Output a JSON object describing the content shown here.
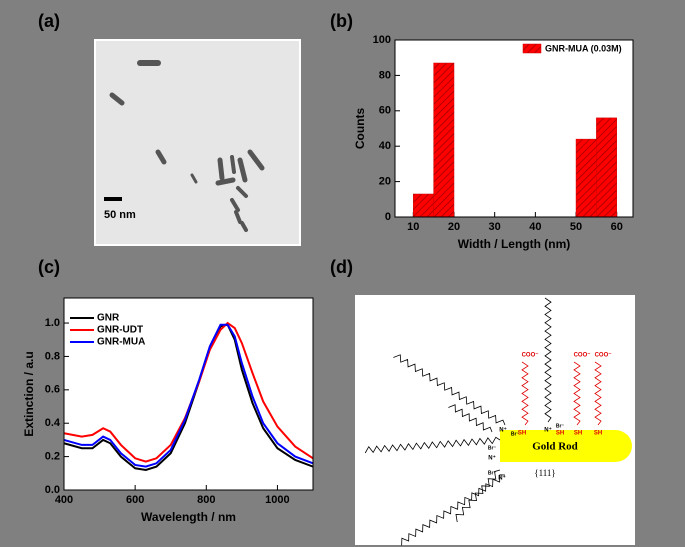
{
  "image_panel": {
    "label": "(a)",
    "scale_bar": "50 nm"
  },
  "chart_data": [
    {
      "type": "histogram",
      "panel_label": "(b)",
      "name": "GNR-MUA (0.03M)",
      "color": "#ff0000",
      "legend": "upper right",
      "bins": [
        10,
        15,
        20,
        25,
        30,
        35,
        40,
        45,
        50,
        55,
        60
      ],
      "counts": [
        13,
        87,
        0,
        0,
        0,
        0,
        0,
        0,
        44,
        56
      ],
      "xlim": [
        5.5,
        64
      ],
      "xticks": [
        10,
        20,
        30,
        40,
        50,
        60
      ],
      "ylim": [
        0,
        100
      ],
      "yticks": [
        0,
        20,
        40,
        60,
        80,
        100
      ],
      "xlabel": "Width / Length (nm)",
      "ylabel": "Counts"
    },
    {
      "type": "line",
      "panel_label": "(c)",
      "legend": "upper left",
      "x": [
        400,
        450,
        480,
        510,
        530,
        560,
        600,
        630,
        660,
        700,
        740,
        780,
        810,
        840,
        860,
        880,
        900,
        930,
        960,
        1000,
        1050,
        1100
      ],
      "series": [
        {
          "name": "GNR",
          "color": "#000000",
          "values": [
            0.28,
            0.25,
            0.25,
            0.3,
            0.28,
            0.2,
            0.13,
            0.12,
            0.14,
            0.22,
            0.4,
            0.65,
            0.85,
            0.98,
            0.99,
            0.9,
            0.72,
            0.52,
            0.37,
            0.25,
            0.18,
            0.14
          ]
        },
        {
          "name": "GNR-UDT",
          "color": "#ff0000",
          "values": [
            0.34,
            0.32,
            0.33,
            0.37,
            0.35,
            0.27,
            0.19,
            0.17,
            0.19,
            0.27,
            0.43,
            0.65,
            0.84,
            0.96,
            1.0,
            0.97,
            0.88,
            0.7,
            0.53,
            0.38,
            0.26,
            0.19
          ]
        },
        {
          "name": "GNR-MUA",
          "color": "#0000ff",
          "values": [
            0.3,
            0.27,
            0.27,
            0.32,
            0.3,
            0.22,
            0.15,
            0.14,
            0.16,
            0.24,
            0.42,
            0.66,
            0.86,
            0.99,
            0.99,
            0.92,
            0.76,
            0.56,
            0.4,
            0.28,
            0.2,
            0.16
          ]
        }
      ],
      "xlim": [
        400,
        1100
      ],
      "xticks": [
        400,
        600,
        800,
        1000
      ],
      "ylim": [
        0,
        1.15
      ],
      "yticks": [
        {
          "value": 0,
          "label": "0.0"
        },
        0.2,
        0.4,
        0.6,
        0.8,
        {
          "value": 1,
          "label": "1.0"
        }
      ],
      "xlabel": "Wavelength / nm",
      "ylabel": "Extinction / a.u"
    }
  ],
  "diagram": {
    "label": "(d)",
    "rod": "Gold Rod",
    "facet": "{111}",
    "carboxylates": [
      "COO⁻",
      "COO⁻",
      "COO⁻"
    ],
    "thiols": [
      "SH",
      "SH",
      "SH",
      "SH"
    ],
    "ammonium": [
      "N⁺",
      "N⁺",
      "N⁺",
      "N⁺"
    ],
    "bromide": [
      "Br⁻",
      "Br⁻",
      "Br⁻",
      "Br⁻"
    ]
  }
}
